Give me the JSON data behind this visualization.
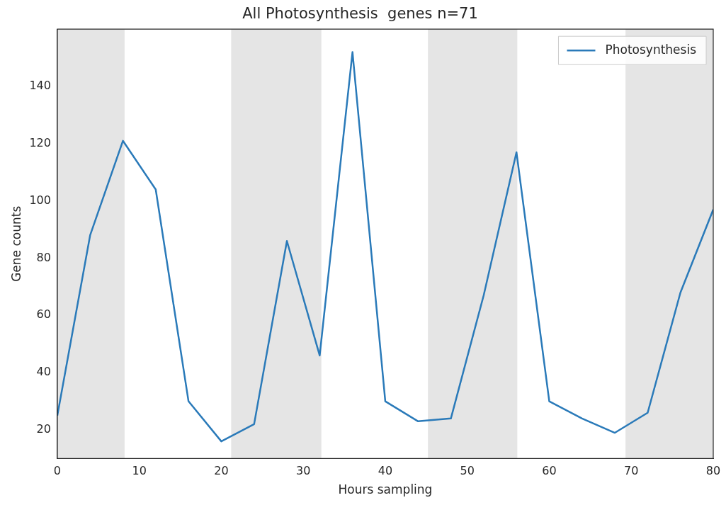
{
  "chart_data": {
    "type": "line",
    "title": "All Photosynthesis  genes n=71",
    "xlabel": "Hours sampling",
    "ylabel": "Gene counts",
    "x": [
      0,
      4,
      8,
      12,
      16,
      20,
      24,
      28,
      32,
      36,
      40,
      44,
      48,
      52,
      56,
      60,
      64,
      68,
      72,
      76,
      80
    ],
    "series": [
      {
        "name": "Photosynthesis",
        "color": "#2a7ab9",
        "values": [
          25,
          88,
          121,
          104,
          30,
          16,
          22,
          86,
          46,
          152,
          30,
          23,
          24,
          67,
          117,
          30,
          24,
          19,
          26,
          68,
          97
        ]
      }
    ],
    "xlim": [
      0,
      80
    ],
    "xticks": [
      0,
      10,
      20,
      30,
      40,
      50,
      60,
      70,
      80
    ],
    "ylim": [
      10,
      160
    ],
    "yticks": [
      20,
      40,
      60,
      80,
      100,
      120,
      140
    ],
    "bands": [
      {
        "axis": "x",
        "from": 0,
        "to": 8.2,
        "color": "#e5e5e5"
      },
      {
        "axis": "x",
        "from": 21.2,
        "to": 32.2,
        "color": "#e5e5e5"
      },
      {
        "axis": "x",
        "from": 45.2,
        "to": 56.1,
        "color": "#e5e5e5"
      },
      {
        "axis": "x",
        "from": 69.3,
        "to": 80,
        "color": "#e5e5e5"
      }
    ],
    "grid": false,
    "legend": "top right",
    "marker": "none",
    "line_style": "solid"
  }
}
